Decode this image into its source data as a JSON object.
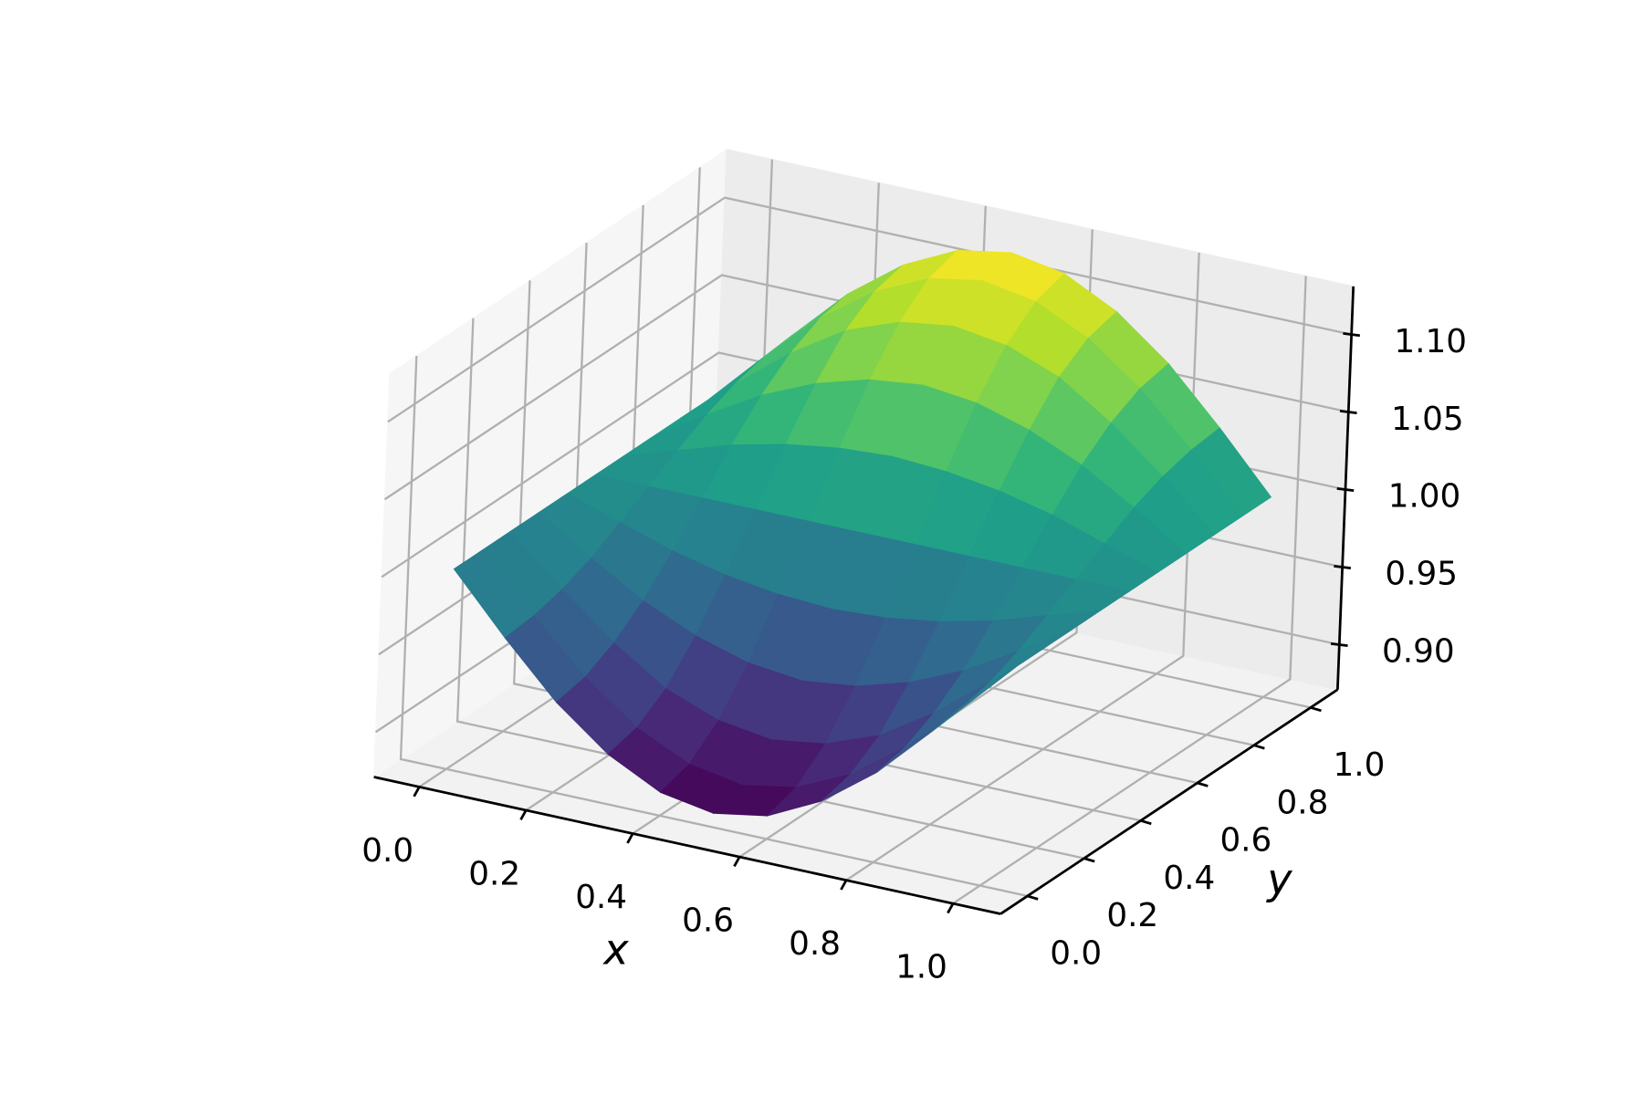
{
  "chart_data": {
    "type": "surface",
    "colormap": "viridis",
    "xlabel": "x",
    "ylabel": "y",
    "x": [
      0,
      0.1,
      0.2,
      0.3,
      0.4,
      0.5,
      0.6,
      0.7,
      0.8,
      0.9,
      1
    ],
    "y": [
      0,
      0.1,
      0.2,
      0.3,
      0.4,
      0.5,
      0.6,
      0.7,
      0.8,
      0.9,
      1
    ],
    "z": [
      [
        1,
        0.963,
        0.929,
        0.903,
        0.886,
        0.88,
        0.886,
        0.903,
        0.929,
        0.963,
        1
      ],
      [
        1,
        0.965,
        0.933,
        0.908,
        0.892,
        0.886,
        0.892,
        0.908,
        0.933,
        0.965,
        1
      ],
      [
        1,
        0.97,
        0.943,
        0.921,
        0.908,
        0.903,
        0.908,
        0.921,
        0.943,
        0.97,
        1
      ],
      [
        1,
        0.978,
        0.958,
        0.943,
        0.933,
        0.929,
        0.933,
        0.943,
        0.958,
        0.978,
        1
      ],
      [
        1,
        0.989,
        0.978,
        0.97,
        0.965,
        0.963,
        0.965,
        0.97,
        0.978,
        0.989,
        1
      ],
      [
        1,
        1,
        1,
        1,
        1,
        1,
        1,
        1,
        1,
        1,
        1
      ],
      [
        1,
        1.011,
        1.022,
        1.03,
        1.035,
        1.037,
        1.035,
        1.03,
        1.022,
        1.011,
        1
      ],
      [
        1,
        1.022,
        1.042,
        1.057,
        1.067,
        1.071,
        1.067,
        1.057,
        1.042,
        1.022,
        1
      ],
      [
        1,
        1.03,
        1.057,
        1.079,
        1.092,
        1.097,
        1.092,
        1.079,
        1.057,
        1.03,
        1
      ],
      [
        1,
        1.035,
        1.067,
        1.092,
        1.108,
        1.114,
        1.108,
        1.092,
        1.067,
        1.035,
        1
      ],
      [
        1,
        1.037,
        1.071,
        1.097,
        1.114,
        1.12,
        1.114,
        1.097,
        1.071,
        1.037,
        1
      ]
    ],
    "xlim": [
      -0.085,
      1.089
    ],
    "ylim": [
      -0.095,
      1.095
    ],
    "zlim": [
      0.871,
      1.131
    ],
    "xticks": [
      {
        "value": 0,
        "label": "0.0"
      },
      0.2,
      0.4,
      0.6,
      0.8,
      {
        "value": 1,
        "label": "1.0"
      }
    ],
    "yticks": [
      {
        "value": 0,
        "label": "0.0"
      },
      0.2,
      0.4,
      0.6,
      0.8,
      {
        "value": 1,
        "label": "1.0"
      }
    ],
    "zticks": [
      {
        "value": 0.9,
        "label": "0.90"
      },
      0.95,
      {
        "value": 1,
        "label": "1.00"
      },
      1.05,
      {
        "value": 1.1,
        "label": "1.10"
      }
    ],
    "grid": true
  }
}
